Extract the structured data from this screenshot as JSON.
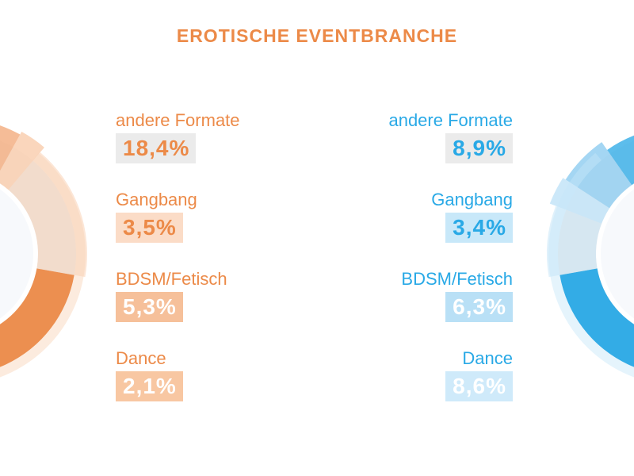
{
  "title": "EROTISCHE EVENTBRANCHE",
  "colors": {
    "orange": "#ec8a48",
    "blue": "#29a9e6",
    "gray_box": "#ebebeb",
    "text_orange": "#ec8a48",
    "text_blue": "#29a9e6"
  },
  "chart_data": [
    {
      "type": "pie",
      "title": "EROTISCHE EVENTBRANCHE",
      "side": "left",
      "unit": "%",
      "categories": [
        "andere Formate",
        "Gangbang",
        "BDSM/Fetisch",
        "Dance"
      ],
      "values": [
        18.4,
        3.5,
        5.3,
        2.1
      ],
      "labels": [
        "18,4%",
        "3,5%",
        "5,3%",
        "2,1%"
      ]
    },
    {
      "type": "pie",
      "title": "EROTISCHE EVENTBRANCHE",
      "side": "right",
      "unit": "%",
      "categories": [
        "andere Formate",
        "Gangbang",
        "BDSM/Fetisch",
        "Dance"
      ],
      "values": [
        8.9,
        3.4,
        6.3,
        8.6
      ],
      "labels": [
        "8,9%",
        "3,4%",
        "6,3%",
        "8,6%"
      ]
    }
  ]
}
